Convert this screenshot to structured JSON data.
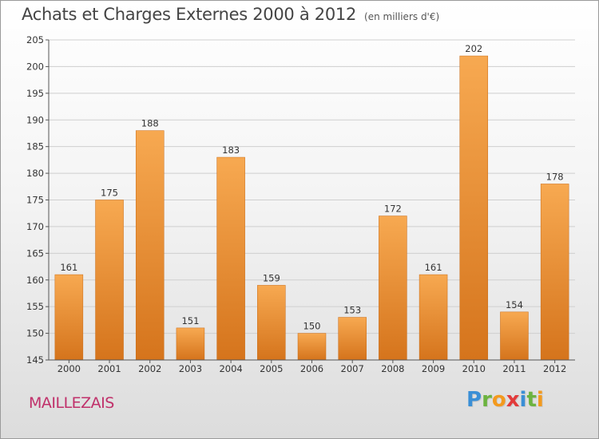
{
  "header": {
    "title": "Achats et Charges Externes 2000 à 2012",
    "unit": "(en milliers d'€)"
  },
  "footer": {
    "commune": "MAILLEZAIS",
    "logo_letters": [
      "P",
      "r",
      "o",
      "x",
      "i",
      "t",
      "i"
    ],
    "logo_colors": [
      "#3a8fd6",
      "#6cb33f",
      "#f39a1e",
      "#e23b3b",
      "#3a8fd6",
      "#6cb33f",
      "#f39a1e"
    ]
  },
  "colors": {
    "bar_light": "#f7a951",
    "bar_dark": "#d5741c",
    "grid": "#cfcfcf",
    "axis": "#555555"
  },
  "chart_data": {
    "type": "bar",
    "title": "Achats et Charges Externes 2000 à 2012",
    "subtitle": "(en milliers d'€)",
    "xlabel": "",
    "ylabel": "",
    "categories": [
      "2000",
      "2001",
      "2002",
      "2003",
      "2004",
      "2005",
      "2006",
      "2007",
      "2008",
      "2009",
      "2010",
      "2011",
      "2012"
    ],
    "values": [
      161,
      175,
      188,
      151,
      183,
      159,
      150,
      153,
      172,
      161,
      202,
      154,
      178
    ],
    "ylim": [
      145,
      205
    ],
    "yticks": [
      145,
      150,
      155,
      160,
      165,
      170,
      175,
      180,
      185,
      190,
      195,
      200,
      205
    ],
    "grid": true,
    "legend": "none"
  }
}
